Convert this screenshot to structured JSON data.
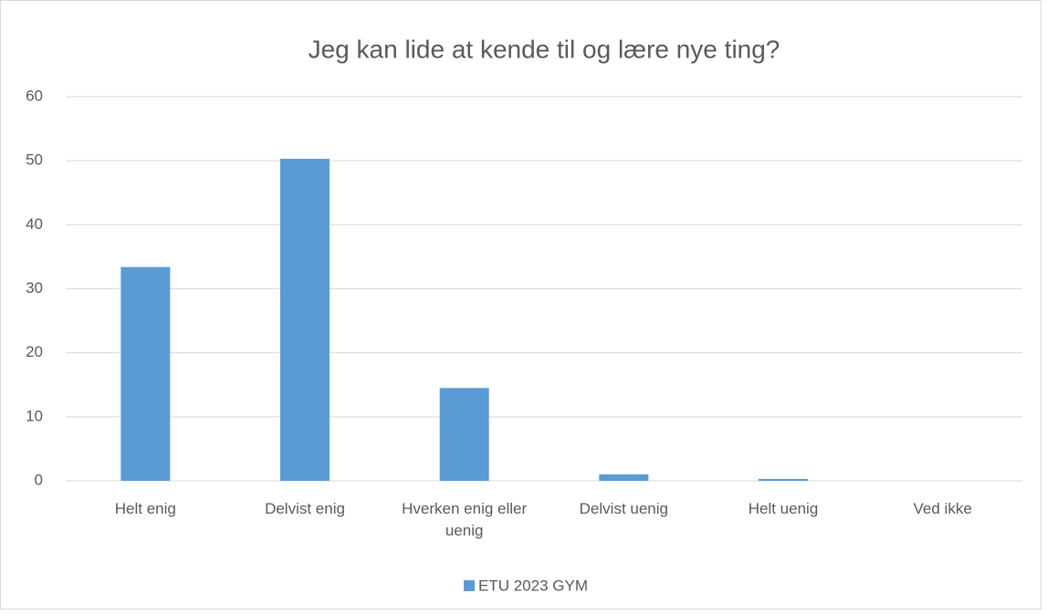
{
  "chart_data": {
    "type": "bar",
    "title": "Jeg kan lide at kende til og lære nye ting?",
    "categories": [
      "Helt enig",
      "Delvist enig",
      "Hverken enig eller uenig",
      "Delvist uenig",
      "Helt uenig",
      "Ved ikke"
    ],
    "series": [
      {
        "name": "ETU 2023 GYM",
        "color": "#5b9bd5",
        "values": [
          33.4,
          50.3,
          14.5,
          1.0,
          0.3,
          0
        ]
      }
    ],
    "ylim": [
      0,
      60
    ],
    "yticks": [
      0,
      10,
      20,
      30,
      40,
      50,
      60
    ],
    "grid": true,
    "legend": "bottom"
  }
}
